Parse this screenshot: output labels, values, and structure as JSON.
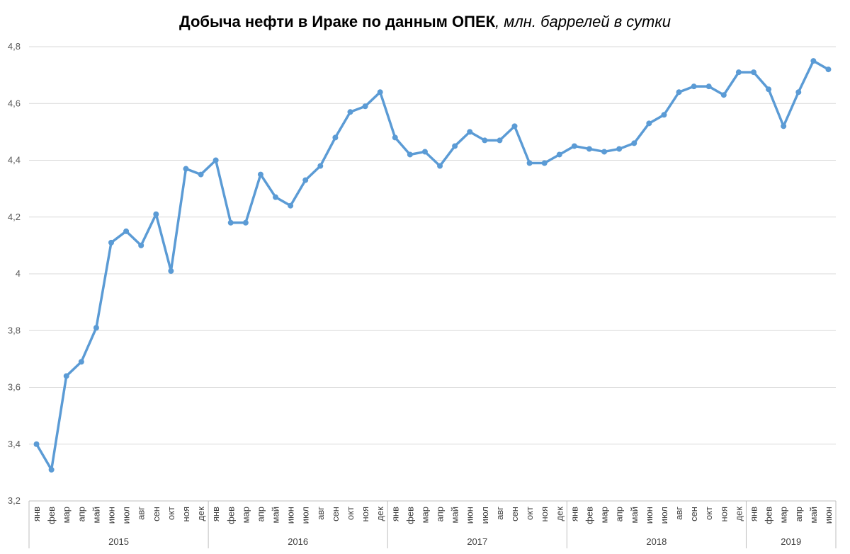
{
  "title": {
    "main": "Добыча нефти в Ираке по данным ОПЕК",
    "sub": ", млн. баррелей в сутки"
  },
  "colors": {
    "line": "#5b9bd5",
    "grid": "#d9d9d9",
    "axis": "#bfbfbf"
  },
  "chart_data": {
    "type": "line",
    "title": "Добыча нефти в Ираке по данным ОПЕК, млн. баррелей в сутки",
    "xlabel": "",
    "ylabel": "",
    "ylim": [
      3.2,
      4.8
    ],
    "yticks": [
      "3,2",
      "3,4",
      "3,6",
      "3,8",
      "4",
      "4,2",
      "4,4",
      "4,6",
      "4,8"
    ],
    "grid": true,
    "legend": "none",
    "months": [
      "янв",
      "фев",
      "мар",
      "апр",
      "май",
      "июн",
      "июл",
      "авг",
      "сен",
      "окт",
      "ноя",
      "дек"
    ],
    "years": [
      {
        "label": "2015",
        "months": 12
      },
      {
        "label": "2016",
        "months": 12
      },
      {
        "label": "2017",
        "months": 12
      },
      {
        "label": "2018",
        "months": 12
      },
      {
        "label": "2019",
        "months": 6
      }
    ],
    "series": [
      {
        "values": [
          3.4,
          3.31,
          3.64,
          3.69,
          3.81,
          4.11,
          4.15,
          4.1,
          4.21,
          4.01,
          4.37,
          4.35,
          4.4,
          4.18,
          4.18,
          4.35,
          4.27,
          4.24,
          4.33,
          4.38,
          4.48,
          4.57,
          4.59,
          4.64,
          4.48,
          4.42,
          4.43,
          4.38,
          4.45,
          4.5,
          4.47,
          4.47,
          4.52,
          4.39,
          4.39,
          4.42,
          4.45,
          4.44,
          4.43,
          4.44,
          4.46,
          4.53,
          4.56,
          4.64,
          4.66,
          4.66,
          4.63,
          4.71,
          4.71,
          4.65,
          4.52,
          4.64,
          4.75,
          4.72
        ]
      }
    ]
  }
}
